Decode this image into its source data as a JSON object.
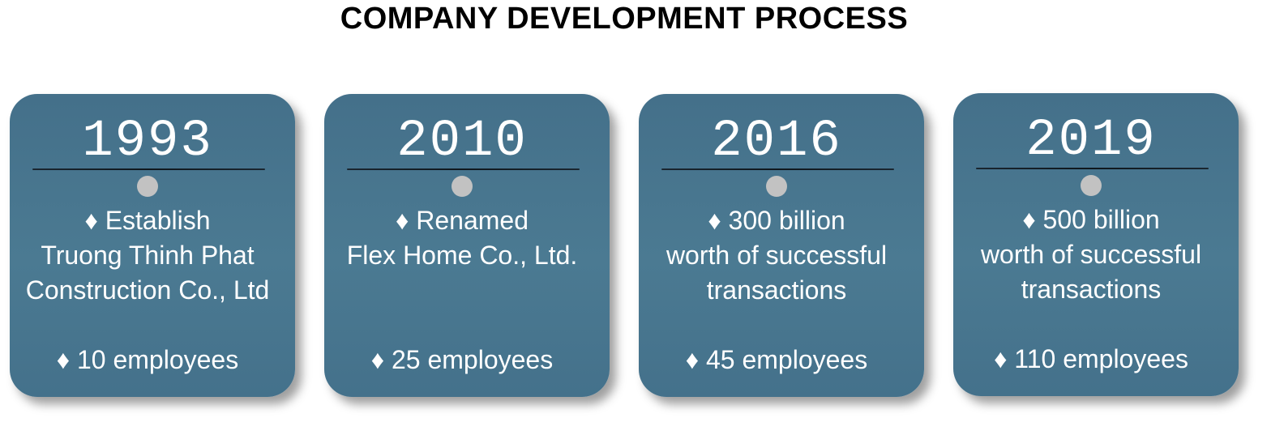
{
  "title": "COMPANY DEVELOPMENT PROCESS",
  "colors": {
    "card_background": "#4a768f",
    "marker_dot": "#c2c2c2",
    "divider": "#14202a",
    "text": "#ffffff"
  },
  "icons": {
    "bullet": "diamond-bullet"
  },
  "milestones": [
    {
      "year": "1993",
      "description": "♦ Establish\nTruong Thinh Phat\nConstruction Co., Ltd",
      "employees": "♦ 10 employees"
    },
    {
      "year": "2010",
      "description": "♦ Renamed\nFlex Home Co., Ltd.",
      "employees": "♦ 25 employees"
    },
    {
      "year": "2016",
      "description": "♦ 300 billion\nworth of successful\ntransactions",
      "employees": "♦ 45 employees"
    },
    {
      "year": "2019",
      "description": "♦ 500 billion\nworth of successful\ntransactions",
      "employees": "♦ 110 employees"
    }
  ]
}
